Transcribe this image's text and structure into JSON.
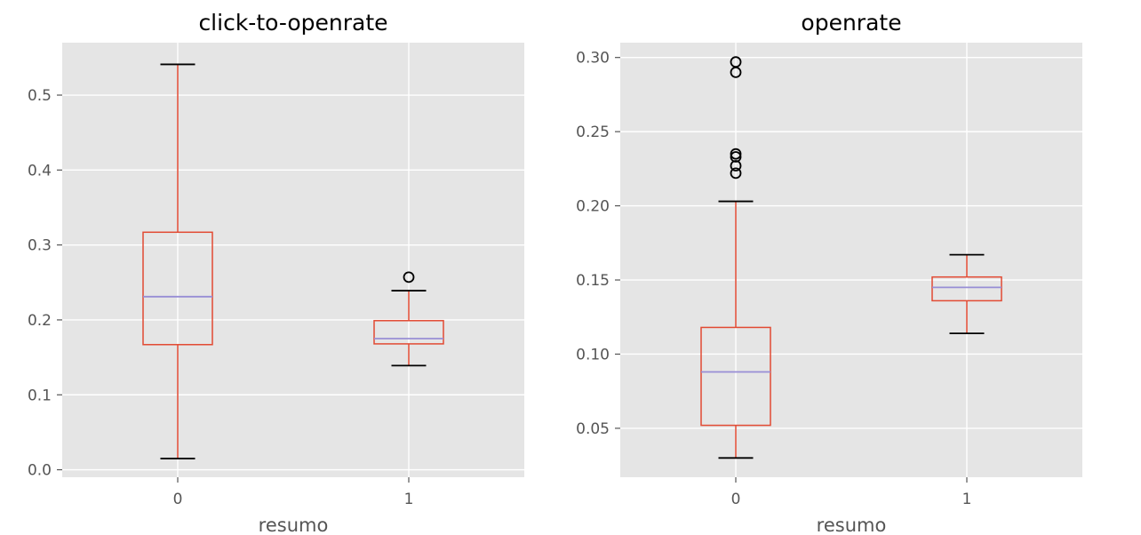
{
  "colors": {
    "background": "#e5e5e5",
    "grid": "#ffffff",
    "box": "#e24a33",
    "median": "#988ed5",
    "caps_and_fliers": "#000000",
    "text": "#555555"
  },
  "chart_data": [
    {
      "type": "boxplot",
      "title": "click-to-openrate",
      "xlabel": "resumo",
      "ylabel": "",
      "categories": [
        "0",
        "1"
      ],
      "ylim": [
        -0.01,
        0.57
      ],
      "yticks": [
        0.0,
        0.1,
        0.2,
        0.3,
        0.4,
        0.5
      ],
      "ytick_labels": [
        "0.0",
        "0.1",
        "0.2",
        "0.3",
        "0.4",
        "0.5"
      ],
      "grid": true,
      "boxes": [
        {
          "category": "0",
          "whisker_low": 0.015,
          "q1": 0.167,
          "median": 0.231,
          "q3": 0.317,
          "whisker_high": 0.541,
          "outliers": []
        },
        {
          "category": "1",
          "whisker_low": 0.139,
          "q1": 0.168,
          "median": 0.175,
          "q3": 0.199,
          "whisker_high": 0.239,
          "outliers": [
            0.257
          ]
        }
      ]
    },
    {
      "type": "boxplot",
      "title": "openrate",
      "xlabel": "resumo",
      "ylabel": "",
      "categories": [
        "0",
        "1"
      ],
      "ylim": [
        0.017,
        0.31
      ],
      "yticks": [
        0.05,
        0.1,
        0.15,
        0.2,
        0.25,
        0.3
      ],
      "ytick_labels": [
        "0.05",
        "0.10",
        "0.15",
        "0.20",
        "0.25",
        "0.30"
      ],
      "grid": true,
      "boxes": [
        {
          "category": "0",
          "whisker_low": 0.03,
          "q1": 0.052,
          "median": 0.088,
          "q3": 0.118,
          "whisker_high": 0.203,
          "outliers": [
            0.222,
            0.227,
            0.233,
            0.235,
            0.29,
            0.297
          ]
        },
        {
          "category": "1",
          "whisker_low": 0.114,
          "q1": 0.136,
          "median": 0.145,
          "q3": 0.152,
          "whisker_high": 0.167,
          "outliers": []
        }
      ]
    }
  ]
}
